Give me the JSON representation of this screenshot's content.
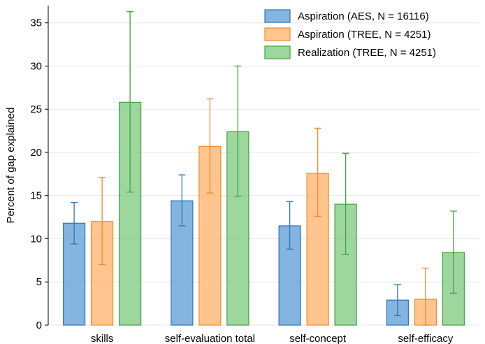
{
  "chart_data": {
    "type": "bar",
    "title": "",
    "xlabel": "",
    "ylabel": "Percent of gap explained",
    "ylim": [
      0,
      37
    ],
    "yticks": [
      0,
      5,
      10,
      15,
      20,
      25,
      30,
      35
    ],
    "grid": true,
    "legend_position": "top-right",
    "categories": [
      "skills",
      "self-evaluation total",
      "self-concept",
      "self-efficacy"
    ],
    "series": [
      {
        "name": "Aspiration (AES, N = 16116)",
        "color": "#5b9bd5",
        "stroke": "#2f76b6",
        "values": [
          11.8,
          14.4,
          11.5,
          2.9
        ],
        "ci_low": [
          9.4,
          11.5,
          8.8,
          1.1
        ],
        "ci_high": [
          14.2,
          17.4,
          14.3,
          4.7
        ]
      },
      {
        "name": "Aspiration (TREE, N = 4251)",
        "color": "#ffb26a",
        "stroke": "#f08a2c",
        "values": [
          12.0,
          20.7,
          17.6,
          3.0
        ],
        "ci_low": [
          7.0,
          15.3,
          12.6,
          0.0
        ],
        "ci_high": [
          17.1,
          26.2,
          22.8,
          6.6
        ]
      },
      {
        "name": "Realization (TREE, N = 4251)",
        "color": "#7ec97e",
        "stroke": "#3ea33e",
        "values": [
          25.8,
          22.4,
          14.0,
          8.4
        ],
        "ci_low": [
          15.4,
          14.9,
          8.2,
          3.7
        ],
        "ci_high": [
          36.3,
          30.0,
          19.9,
          13.2
        ]
      }
    ]
  }
}
